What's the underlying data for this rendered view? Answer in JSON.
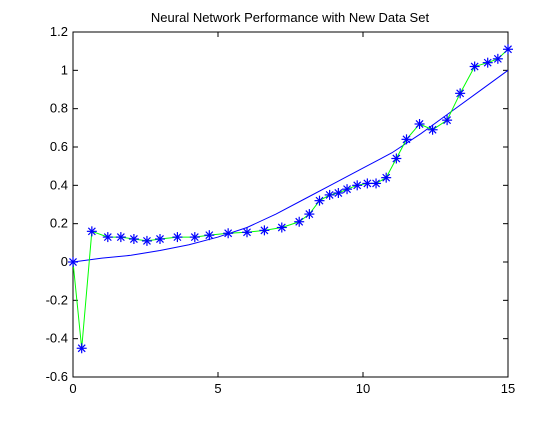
{
  "chart_data": {
    "type": "line",
    "title": "Neural Network Performance with New Data Set",
    "xlabel": "",
    "ylabel": "",
    "xlim": [
      0,
      15
    ],
    "ylim": [
      -0.6,
      1.2
    ],
    "x_ticks": [
      0,
      5,
      10,
      15
    ],
    "y_ticks": [
      -0.6,
      -0.4,
      -0.2,
      0,
      0.2,
      0.4,
      0.6,
      0.8,
      1,
      1.2
    ],
    "x_tick_labels": [
      "0",
      "5",
      "10",
      "15"
    ],
    "y_tick_labels": [
      "-0.6",
      "-0.4",
      "-0.2",
      "0",
      "0.2",
      "0.4",
      "0.6",
      "0.8",
      "1",
      "1.2"
    ],
    "grid": false,
    "series": [
      {
        "role": "target-curve",
        "color": "#0000ff",
        "marker": "none",
        "x": [
          0,
          1,
          2,
          3,
          4,
          5,
          6,
          7,
          8,
          9,
          10,
          11,
          12,
          13,
          14,
          15
        ],
        "y": [
          0.0,
          0.02,
          0.035,
          0.06,
          0.09,
          0.13,
          0.18,
          0.25,
          0.33,
          0.41,
          0.49,
          0.57,
          0.67,
          0.78,
          0.89,
          1.0
        ]
      },
      {
        "role": "network-output",
        "color": "#00ff00",
        "marker": "asterisk",
        "marker_color": "#0000ff",
        "x": [
          0,
          0.3,
          0.65,
          1.2,
          1.65,
          2.1,
          2.55,
          3.0,
          3.6,
          4.2,
          4.7,
          5.35,
          6.0,
          6.6,
          7.2,
          7.8,
          8.15,
          8.5,
          8.85,
          9.15,
          9.45,
          9.8,
          10.15,
          10.45,
          10.8,
          11.15,
          11.5,
          11.95,
          12.4,
          12.9,
          13.35,
          13.85,
          14.3,
          14.65,
          15.0
        ],
        "y": [
          0.0,
          -0.45,
          0.16,
          0.13,
          0.13,
          0.12,
          0.11,
          0.12,
          0.13,
          0.13,
          0.14,
          0.15,
          0.155,
          0.165,
          0.18,
          0.21,
          0.25,
          0.32,
          0.35,
          0.36,
          0.38,
          0.4,
          0.41,
          0.41,
          0.44,
          0.54,
          0.64,
          0.72,
          0.69,
          0.74,
          0.88,
          1.02,
          1.04,
          1.06,
          1.11
        ]
      }
    ]
  }
}
